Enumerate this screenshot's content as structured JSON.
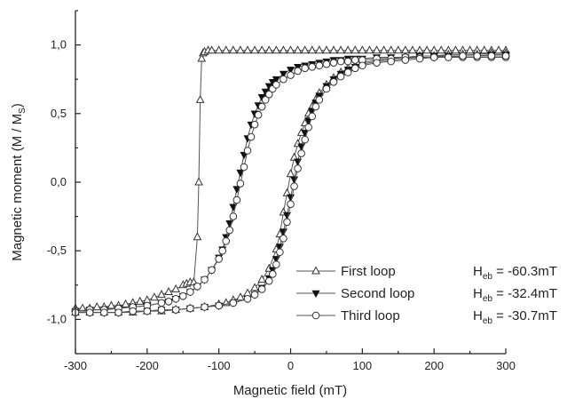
{
  "chart_data": {
    "type": "line",
    "title": "",
    "xlabel": "Magnetic field (mT)",
    "ylabel": {
      "main": "Magnetic moment (M / M",
      "sub": "S",
      "close": ")"
    },
    "xlim": [
      -300,
      300
    ],
    "ylim": [
      -1.25,
      1.25
    ],
    "x_ticks": [
      {
        "value": -300,
        "label": "-300"
      },
      {
        "value": -200,
        "label": "-200"
      },
      {
        "value": -100,
        "label": "-100"
      },
      {
        "value": 0,
        "label": "0"
      },
      {
        "value": 100,
        "label": "100"
      },
      {
        "value": 200,
        "label": "200"
      },
      {
        "value": 300,
        "label": "300"
      }
    ],
    "y_ticks": [
      {
        "value": 1.0,
        "label": "1,0"
      },
      {
        "value": 0.5,
        "label": "0,5"
      },
      {
        "value": 0.0,
        "label": "0,0"
      },
      {
        "value": -0.5,
        "label": "-0,5"
      },
      {
        "value": -1.0,
        "label": "-1,0"
      }
    ],
    "grid": false,
    "legend_position": "bottom-right",
    "series": [
      {
        "name": "First loop",
        "marker": "triangle-open",
        "heb_label": "H",
        "heb_sub": "eb",
        "heb_value": " = -60.3mT",
        "branches": [
          {
            "x": [
              -300,
              -290,
              -280,
              -270,
              -260,
              -250,
              -240,
              -230,
              -220,
              -210,
              -200,
              -190,
              -180,
              -170,
              -160,
              -150,
              -145,
              -140,
              -135,
              -130,
              -128,
              -126,
              -124,
              -122,
              -120,
              -115,
              -110,
              -100,
              -90,
              -80,
              -70,
              -60,
              -50,
              -40,
              -30,
              -20,
              -10,
              0,
              10,
              20,
              30,
              40,
              50,
              60,
              70,
              80,
              90,
              100,
              110,
              120,
              130,
              140,
              150,
              160,
              170,
              180,
              190,
              200,
              210,
              220,
              230,
              240,
              250,
              260,
              270,
              280,
              290,
              300
            ],
            "y": [
              -0.92,
              -0.92,
              -0.92,
              -0.91,
              -0.91,
              -0.9,
              -0.9,
              -0.89,
              -0.88,
              -0.87,
              -0.86,
              -0.84,
              -0.82,
              -0.8,
              -0.78,
              -0.75,
              -0.74,
              -0.73,
              -0.73,
              -0.4,
              0.0,
              0.6,
              0.9,
              0.94,
              0.95,
              0.96,
              0.96,
              0.96,
              0.96,
              0.96,
              0.96,
              0.96,
              0.96,
              0.96,
              0.96,
              0.96,
              0.96,
              0.96,
              0.96,
              0.96,
              0.96,
              0.96,
              0.96,
              0.96,
              0.96,
              0.96,
              0.96,
              0.96,
              0.96,
              0.96,
              0.96,
              0.96,
              0.96,
              0.96,
              0.96,
              0.96,
              0.96,
              0.96,
              0.96,
              0.96,
              0.96,
              0.96,
              0.96,
              0.96,
              0.96,
              0.96,
              0.96,
              0.96
            ]
          },
          {
            "x": [
              -300,
              -280,
              -260,
              -240,
              -220,
              -200,
              -180,
              -160,
              -140,
              -120,
              -100,
              -90,
              -80,
              -70,
              -60,
              -50,
              -40,
              -30,
              -20,
              -15,
              -10,
              -5,
              0,
              5,
              10,
              15,
              20,
              25,
              30,
              35,
              40,
              50,
              60,
              70,
              80,
              90,
              100,
              120,
              140,
              160,
              180,
              200,
              220,
              240,
              260,
              280,
              300
            ],
            "y": [
              -0.95,
              -0.95,
              -0.95,
              -0.95,
              -0.95,
              -0.94,
              -0.94,
              -0.93,
              -0.92,
              -0.91,
              -0.89,
              -0.88,
              -0.86,
              -0.84,
              -0.81,
              -0.77,
              -0.71,
              -0.63,
              -0.49,
              -0.38,
              -0.22,
              -0.08,
              0.06,
              0.18,
              0.28,
              0.36,
              0.43,
              0.5,
              0.55,
              0.6,
              0.65,
              0.71,
              0.76,
              0.8,
              0.83,
              0.85,
              0.87,
              0.89,
              0.9,
              0.91,
              0.92,
              0.92,
              0.93,
              0.93,
              0.93,
              0.94,
              0.94
            ]
          }
        ]
      },
      {
        "name": "Second loop",
        "marker": "triangle-down-filled",
        "heb_label": "H",
        "heb_sub": "eb",
        "heb_value": " = -32.4mT",
        "branches": [
          {
            "x": [
              -300,
              -280,
              -260,
              -240,
              -220,
              -200,
              -180,
              -170,
              -160,
              -150,
              -140,
              -130,
              -120,
              -110,
              -100,
              -95,
              -90,
              -85,
              -80,
              -75,
              -70,
              -65,
              -60,
              -55,
              -50,
              -45,
              -40,
              -35,
              -30,
              -25,
              -20,
              -10,
              0,
              10,
              20,
              30,
              40,
              50,
              60,
              70,
              80,
              90,
              100,
              120,
              140,
              160,
              180,
              200,
              220,
              240,
              260,
              280,
              300
            ],
            "y": [
              -0.94,
              -0.93,
              -0.93,
              -0.92,
              -0.91,
              -0.9,
              -0.88,
              -0.87,
              -0.85,
              -0.83,
              -0.8,
              -0.76,
              -0.71,
              -0.64,
              -0.55,
              -0.49,
              -0.4,
              -0.3,
              -0.18,
              -0.05,
              0.07,
              0.2,
              0.32,
              0.42,
              0.5,
              0.56,
              0.62,
              0.66,
              0.7,
              0.73,
              0.75,
              0.79,
              0.82,
              0.84,
              0.85,
              0.86,
              0.87,
              0.88,
              0.89,
              0.89,
              0.9,
              0.9,
              0.9,
              0.91,
              0.91,
              0.91,
              0.92,
              0.92,
              0.92,
              0.92,
              0.92,
              0.92,
              0.92
            ]
          },
          {
            "x": [
              -300,
              -280,
              -260,
              -240,
              -220,
              -200,
              -180,
              -160,
              -140,
              -120,
              -100,
              -80,
              -60,
              -50,
              -40,
              -30,
              -25,
              -20,
              -15,
              -10,
              -5,
              0,
              5,
              10,
              15,
              20,
              25,
              30,
              35,
              40,
              50,
              60,
              70,
              80,
              90,
              100,
              120,
              140,
              160,
              180,
              200,
              220,
              240,
              260,
              280,
              300
            ],
            "y": [
              -0.95,
              -0.95,
              -0.95,
              -0.95,
              -0.94,
              -0.94,
              -0.93,
              -0.93,
              -0.92,
              -0.91,
              -0.9,
              -0.88,
              -0.85,
              -0.82,
              -0.77,
              -0.7,
              -0.64,
              -0.56,
              -0.47,
              -0.36,
              -0.24,
              -0.11,
              0.02,
              0.15,
              0.26,
              0.36,
              0.45,
              0.52,
              0.58,
              0.63,
              0.7,
              0.75,
              0.79,
              0.82,
              0.84,
              0.86,
              0.88,
              0.89,
              0.9,
              0.91,
              0.91,
              0.92,
              0.92,
              0.92,
              0.93,
              0.93
            ]
          }
        ]
      },
      {
        "name": "Third loop",
        "marker": "circle-open",
        "heb_label": "H",
        "heb_sub": "eb",
        "heb_value": " = -30.7mT",
        "branches": [
          {
            "x": [
              -300,
              -280,
              -260,
              -240,
              -220,
              -200,
              -180,
              -170,
              -160,
              -150,
              -140,
              -130,
              -120,
              -110,
              -100,
              -95,
              -90,
              -85,
              -80,
              -75,
              -70,
              -65,
              -60,
              -55,
              -50,
              -45,
              -40,
              -35,
              -30,
              -25,
              -20,
              -10,
              0,
              10,
              20,
              30,
              40,
              50,
              60,
              70,
              80,
              90,
              100,
              120,
              140,
              160,
              180,
              200,
              220,
              240,
              260,
              280,
              300
            ],
            "y": [
              -0.94,
              -0.93,
              -0.93,
              -0.92,
              -0.91,
              -0.9,
              -0.88,
              -0.87,
              -0.85,
              -0.83,
              -0.8,
              -0.76,
              -0.71,
              -0.64,
              -0.56,
              -0.5,
              -0.43,
              -0.35,
              -0.25,
              -0.13,
              -0.01,
              0.11,
              0.23,
              0.33,
              0.42,
              0.49,
              0.55,
              0.6,
              0.64,
              0.68,
              0.71,
              0.75,
              0.78,
              0.81,
              0.83,
              0.84,
              0.85,
              0.86,
              0.87,
              0.88,
              0.88,
              0.89,
              0.89,
              0.9,
              0.9,
              0.91,
              0.91,
              0.91,
              0.91,
              0.91,
              0.91,
              0.91,
              0.91
            ]
          },
          {
            "x": [
              -300,
              -280,
              -260,
              -240,
              -220,
              -200,
              -180,
              -160,
              -140,
              -120,
              -100,
              -80,
              -60,
              -50,
              -40,
              -30,
              -25,
              -20,
              -15,
              -10,
              -5,
              0,
              5,
              10,
              15,
              20,
              25,
              30,
              35,
              40,
              50,
              60,
              70,
              80,
              90,
              100,
              120,
              140,
              160,
              180,
              200,
              220,
              240,
              260,
              280,
              300
            ],
            "y": [
              -0.95,
              -0.95,
              -0.95,
              -0.95,
              -0.94,
              -0.94,
              -0.93,
              -0.93,
              -0.92,
              -0.91,
              -0.9,
              -0.88,
              -0.85,
              -0.82,
              -0.78,
              -0.72,
              -0.67,
              -0.6,
              -0.51,
              -0.41,
              -0.29,
              -0.16,
              -0.03,
              0.1,
              0.21,
              0.31,
              0.4,
              0.48,
              0.55,
              0.6,
              0.68,
              0.73,
              0.77,
              0.8,
              0.83,
              0.85,
              0.87,
              0.88,
              0.89,
              0.9,
              0.91,
              0.91,
              0.92,
              0.92,
              0.92,
              0.92
            ]
          }
        ]
      }
    ]
  }
}
